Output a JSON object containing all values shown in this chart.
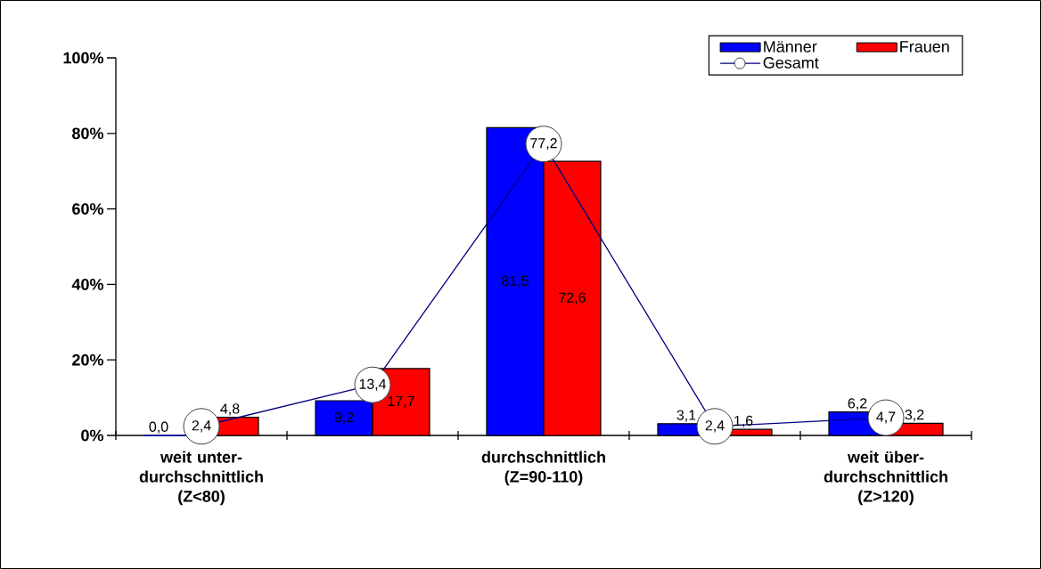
{
  "chart_data": {
    "type": "bar",
    "categories": [
      "weit unter- durchschnittlich (Z<80)",
      null,
      "durchschnittlich (Z=90-110)",
      null,
      "weit über- durchschnittlich (Z>120)"
    ],
    "series": [
      {
        "name": "Männer",
        "color": "#0000ff",
        "values": [
          0,
          9.2,
          81.5,
          3.1,
          6.2
        ],
        "value_labels": [
          "0,0",
          "9,2",
          "81,5",
          "3,1",
          "6,2"
        ]
      },
      {
        "name": "Frauen",
        "color": "#ff0000",
        "values": [
          4.8,
          17.7,
          72.6,
          1.6,
          3.2
        ],
        "value_labels": [
          "4,8",
          "17,7",
          "72,6",
          "1,6",
          "3,2"
        ]
      },
      {
        "name": "Gesamt",
        "type": "line",
        "color": "#000080",
        "marker": "circle",
        "values": [
          2.4,
          13.4,
          77.2,
          2.4,
          4.7
        ],
        "value_labels": [
          "2,4",
          "13,4",
          "77,2",
          "2,4",
          "4,7"
        ]
      }
    ],
    "ylim": [
      0,
      100
    ],
    "yticks": [
      {
        "value": 0,
        "label": "0%"
      },
      {
        "value": 20,
        "label": "20%"
      },
      {
        "value": 40,
        "label": "40%"
      },
      {
        "value": 60,
        "label": "60%"
      },
      {
        "value": 80,
        "label": "80%"
      },
      {
        "value": 100,
        "label": "100%"
      }
    ],
    "legend": "top right"
  }
}
